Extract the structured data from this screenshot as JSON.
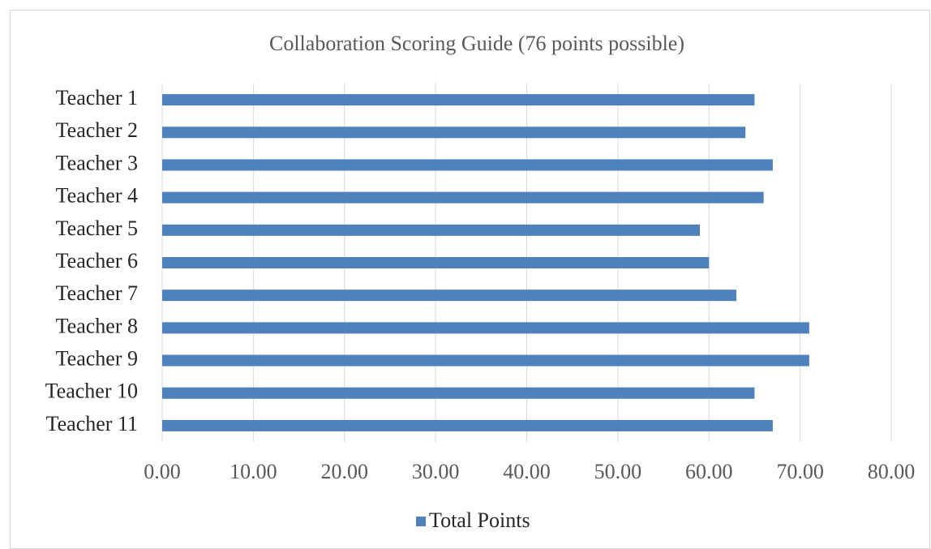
{
  "chart_data": {
    "type": "bar",
    "orientation": "horizontal",
    "title": "Collaboration Scoring Guide (76 points possible)",
    "categories": [
      "Teacher 1",
      "Teacher 2",
      "Teacher 3",
      "Teacher 4",
      "Teacher 5",
      "Teacher 6",
      "Teacher 7",
      "Teacher 8",
      "Teacher 9",
      "Teacher 10",
      "Teacher 11"
    ],
    "series": [
      {
        "name": "Total Points",
        "color": "#4f81bd",
        "values": [
          65,
          64,
          67,
          66,
          59,
          60,
          63,
          71,
          71,
          65,
          67
        ]
      }
    ],
    "xlim": [
      0,
      80
    ],
    "xticks": [
      {
        "value": 0,
        "label": "0.00"
      },
      {
        "value": 10,
        "label": "10.00"
      },
      {
        "value": 20,
        "label": "20.00"
      },
      {
        "value": 30,
        "label": "30.00"
      },
      {
        "value": 40,
        "label": "40.00"
      },
      {
        "value": 50,
        "label": "50.00"
      },
      {
        "value": 60,
        "label": "60.00"
      },
      {
        "value": 70,
        "label": "70.00"
      },
      {
        "value": 80,
        "label": "80.00"
      }
    ],
    "grid": true,
    "legend": "bottom"
  }
}
